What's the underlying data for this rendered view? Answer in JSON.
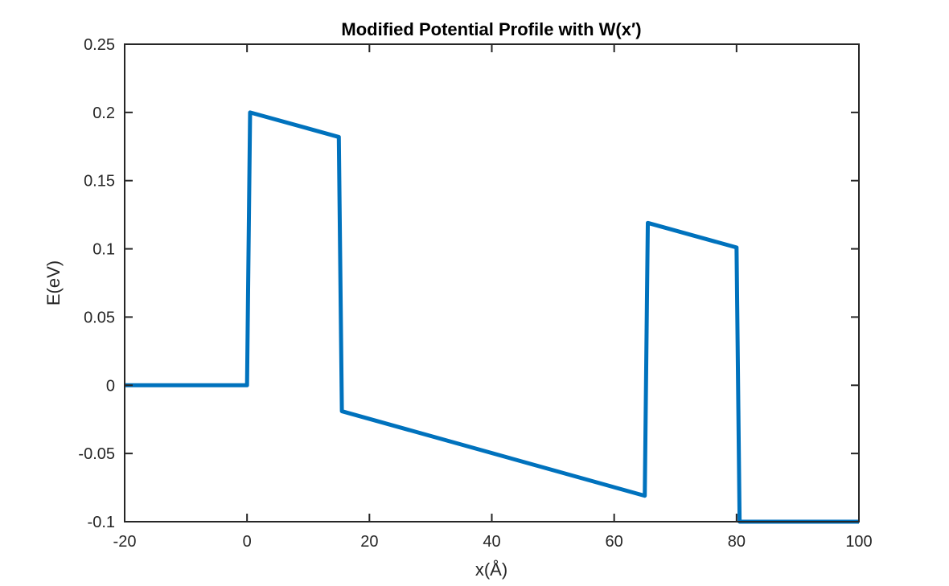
{
  "chart_data": {
    "type": "line",
    "title": "Modified Potential Profile with W(x′)",
    "xlabel": "x(Å)",
    "ylabel": "E(eV)",
    "xlim": [
      -20,
      100
    ],
    "ylim": [
      -0.1,
      0.25
    ],
    "xticks": [
      -20,
      0,
      20,
      40,
      60,
      80,
      100
    ],
    "xtick_labels": [
      "-20",
      "0",
      "20",
      "40",
      "60",
      "80",
      "100"
    ],
    "yticks": [
      -0.1,
      -0.05,
      0,
      0.05,
      0.1,
      0.15,
      0.2,
      0.25
    ],
    "ytick_labels": [
      "-0.1",
      "-0.05",
      "0",
      "0.05",
      "0.1",
      "0.15",
      "0.2",
      "0.25"
    ],
    "grid": false,
    "line_color": "#0072BD",
    "series": [
      {
        "x": [
          -20,
          0,
          0.5,
          15,
          15.5,
          65,
          65.5,
          80,
          80.5,
          100
        ],
        "y": [
          0,
          0,
          0.2,
          0.182,
          -0.019,
          -0.081,
          0.119,
          0.101,
          -0.1,
          -0.1
        ]
      }
    ]
  }
}
